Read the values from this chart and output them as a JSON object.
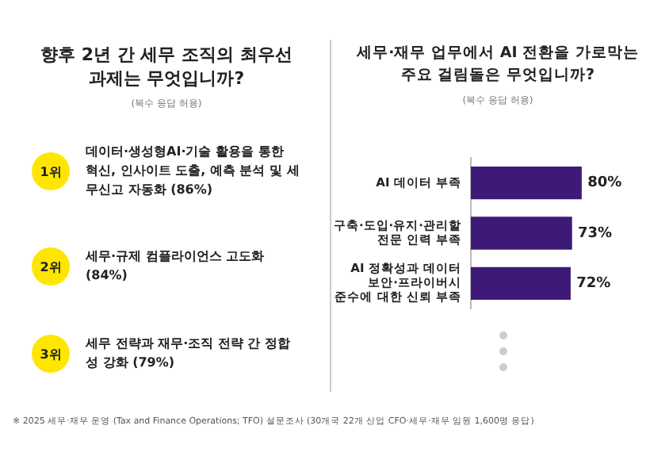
{
  "chart_data": [
    {
      "type": "other",
      "title": "향후 2년 간 세무 조직의 최우선 과제는 무엇입니까?",
      "subtitle": "(복수 응답 허용)",
      "categories": [
        "1위",
        "2위",
        "3위"
      ],
      "annotations": [
        "데이터·생성형AI·기술 활용을 통한 혁신, 인사이트 도출, 예측 분석 및 세무신고 자동화 (86%)",
        "세무·규제 컴플라이언스 고도화 (84%)",
        "세무 전략과 재무·조직 전략 간 정합성 강화 (79%)",
        "※ 2025 세무·재무 운영 (Tax and Finance Operations; TFO) 설문조사 (30개국 22개 산업 CFO·세무·재무 임원 1,600명 응답)"
      ],
      "color": "#ffe600"
    },
    {
      "type": "bar",
      "orientation": "horizontal",
      "title": "세무·재무 업무에서 AI 전환을 가로막는 주요 걸림돌은 무엇입니까?",
      "subtitle": "(복수 응답 허용)",
      "categories": [
        "AI 데이터 부족",
        "구축·도입·유지·관리할 전문 인력 부족",
        "AI 정확성과 데이터 보안·프라이버시 준수에 대한 신뢰 부족"
      ],
      "values": [
        80,
        73,
        72
      ],
      "value_labels": [
        "80%",
        "73%",
        "72%"
      ],
      "color": "#3d1a78",
      "tick_labels": "y",
      "legend": false
    }
  ]
}
